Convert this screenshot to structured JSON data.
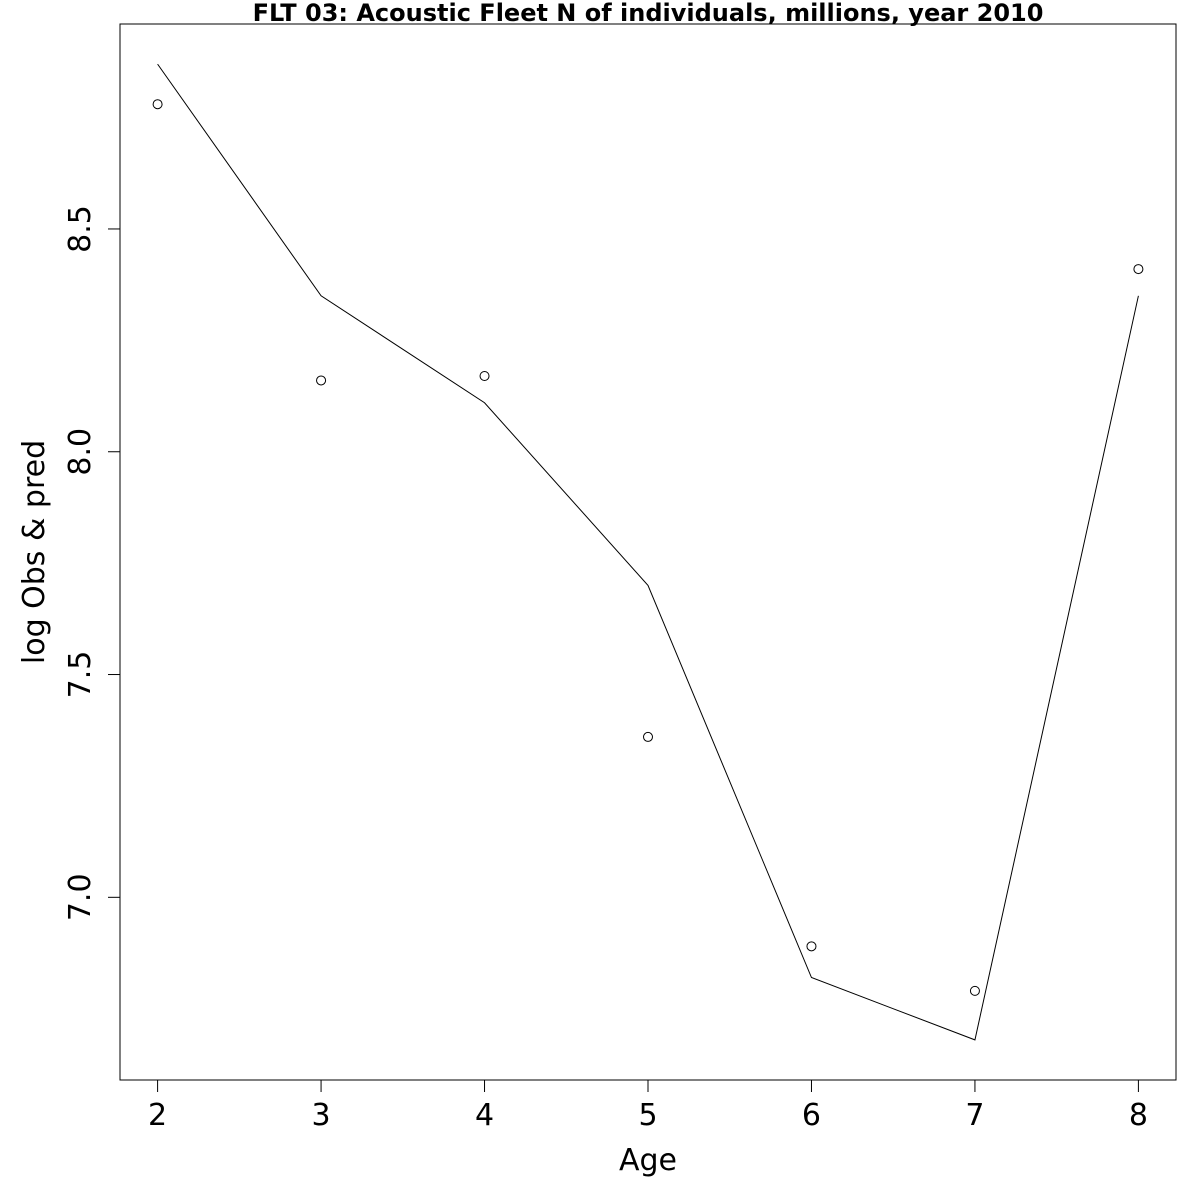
{
  "chart_data": {
    "type": "line",
    "title": "FLT 03: Acoustic Fleet  N of individuals, millions, year 2010",
    "xlabel": "Age",
    "ylabel": "log Obs & pred",
    "x": [
      2,
      3,
      4,
      5,
      6,
      7,
      8
    ],
    "xlim": [
      1.77,
      8.23
    ],
    "ylim": [
      6.59,
      8.96
    ],
    "x_ticks": [
      2,
      3,
      4,
      5,
      6,
      7,
      8
    ],
    "x_tick_labels": [
      "2",
      "3",
      "4",
      "5",
      "6",
      "7",
      "8"
    ],
    "y_ticks": [
      7.0,
      7.5,
      8.0,
      8.5
    ],
    "y_tick_labels": [
      "7.0",
      "7.5",
      "8.0",
      "8.5"
    ],
    "grid": false,
    "series": [
      {
        "style": "line",
        "values": [
          8.87,
          8.35,
          8.11,
          7.7,
          6.82,
          6.68,
          8.35
        ]
      },
      {
        "style": "points",
        "values": [
          8.78,
          8.16,
          8.17,
          7.36,
          6.89,
          6.79,
          8.41
        ]
      }
    ]
  }
}
